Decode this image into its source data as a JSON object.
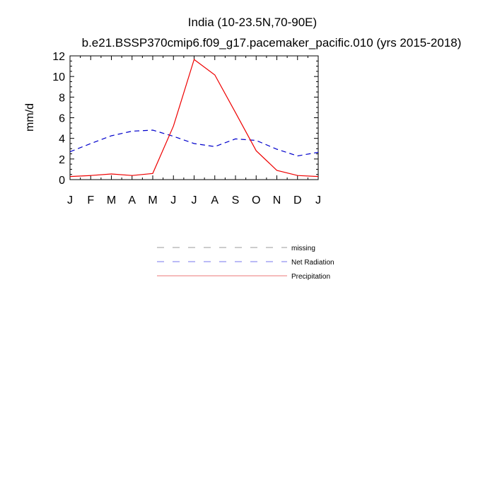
{
  "chart_data": {
    "type": "line",
    "title": "India (10-23.5N,70-90E)",
    "subtitle": "b.e21.BSSP370cmip6.f09_g17.pacemaker_pacific.010 (yrs 2015-2018)",
    "ylabel": "mm/d",
    "xlabel": "",
    "categories": [
      "J",
      "F",
      "M",
      "A",
      "M",
      "J",
      "J",
      "A",
      "S",
      "O",
      "N",
      "D",
      "J"
    ],
    "ylim": [
      0,
      12
    ],
    "yticks": [
      0,
      2,
      4,
      6,
      8,
      10,
      12
    ],
    "grid": false,
    "legend_position": "below",
    "legend": [
      "missing",
      "Net Radiation",
      "Precipitation"
    ],
    "series": [
      {
        "name": "Net Radiation",
        "color": "#0000cc",
        "style": "dashed",
        "values": [
          2.7,
          3.5,
          4.25,
          4.7,
          4.8,
          4.2,
          3.5,
          3.2,
          3.95,
          3.8,
          2.95,
          2.3,
          2.65
        ]
      },
      {
        "name": "Precipitation",
        "color": "#ee0000",
        "style": "solid",
        "values": [
          0.3,
          0.4,
          0.55,
          0.4,
          0.6,
          5.2,
          11.65,
          10.15,
          6.5,
          2.8,
          0.9,
          0.4,
          0.3
        ]
      }
    ],
    "legend_items": [
      {
        "label": "missing",
        "color": "#999999",
        "style": "dashed"
      },
      {
        "label": "Net Radiation",
        "color": "#7777ee",
        "style": "dashed"
      },
      {
        "label": "Precipitation",
        "color": "#ee7777",
        "style": "solid"
      }
    ]
  }
}
